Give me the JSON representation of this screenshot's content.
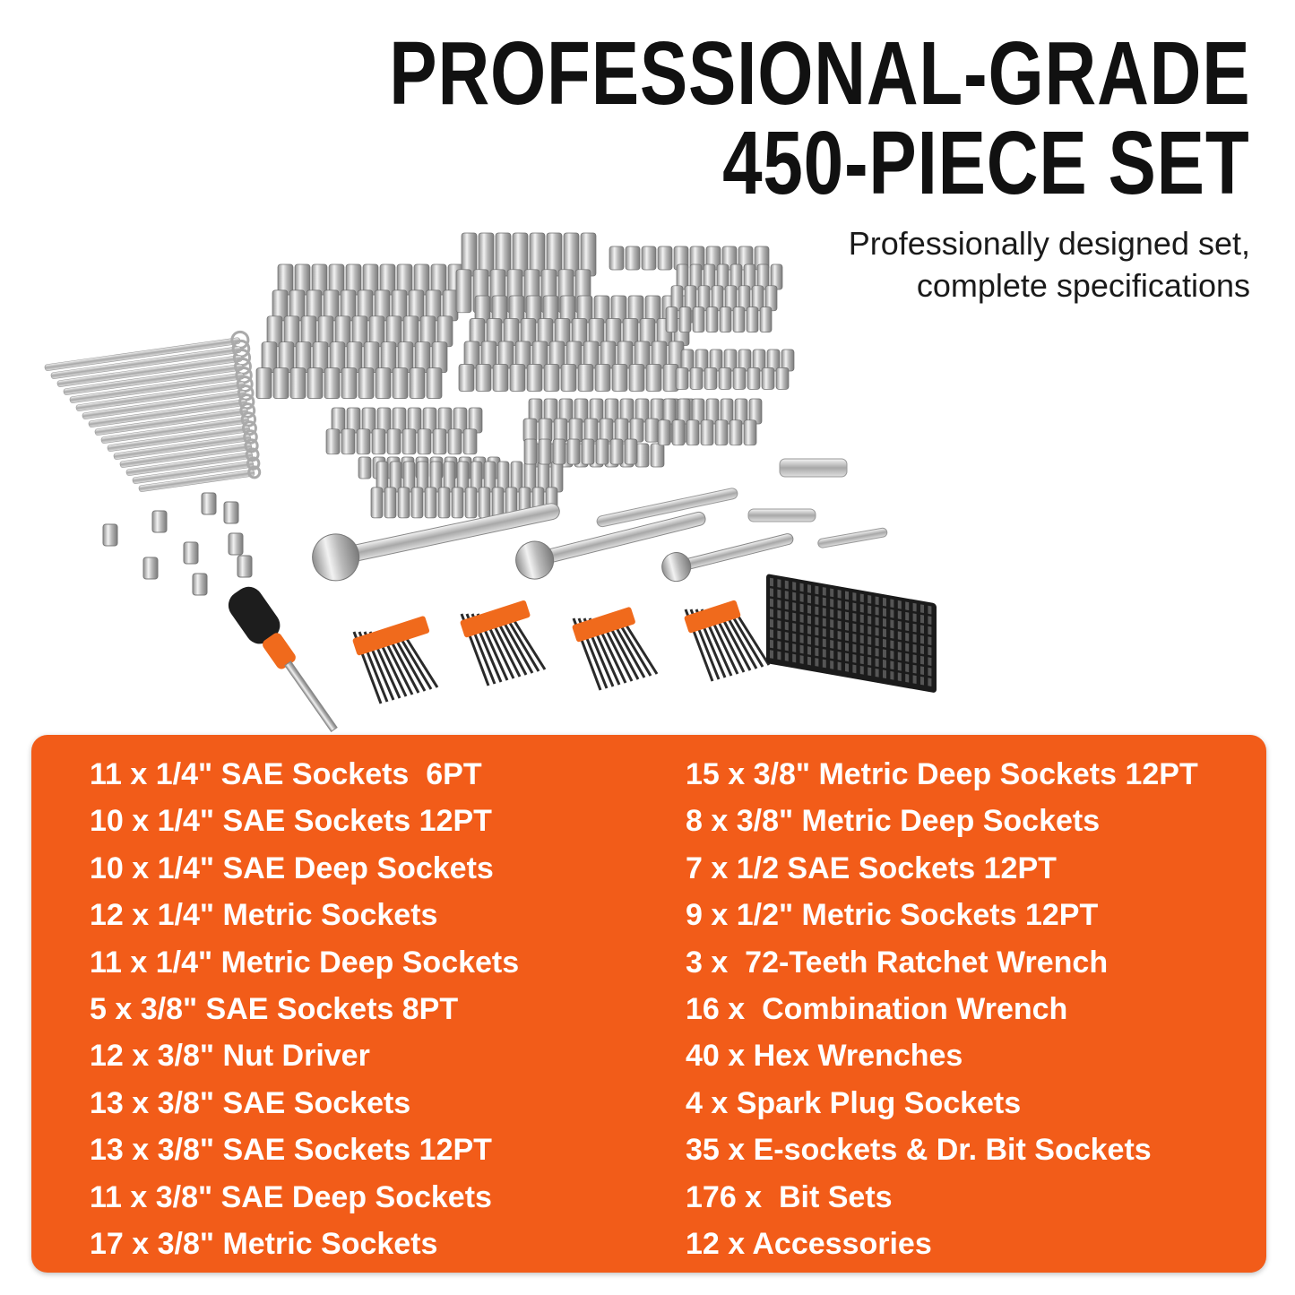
{
  "header": {
    "title_line1": "PROFESSIONAL-GRADE",
    "title_line2": "450-PIECE SET",
    "subtitle_line1": "Professionally designed set,",
    "subtitle_line2": "complete specifications"
  },
  "colors": {
    "accent": "#F25C19",
    "title": "#111111",
    "list_text": "#FFFFFF"
  },
  "contents": {
    "left": [
      "11 x 1/4\" SAE Sockets  6PT",
      "10 x 1/4\" SAE Sockets 12PT",
      "10 x 1/4\" SAE Deep Sockets",
      "12 x 1/4\" Metric Sockets",
      "11 x 1/4\" Metric Deep Sockets",
      "5 x 3/8\" SAE Sockets 8PT",
      "12 x 3/8\" Nut Driver",
      "13 x 3/8\" SAE Sockets",
      "13 x 3/8\" SAE Sockets 12PT",
      "11 x 3/8\" SAE Deep Sockets",
      "17 x 3/8\" Metric Sockets"
    ],
    "right": [
      "15 x 3/8\" Metric Deep Sockets 12PT",
      "8 x 3/8\" Metric Deep Sockets",
      "7 x 1/2 SAE Sockets 12PT",
      "9 x 1/2\" Metric Sockets 12PT",
      "3 x  72-Teeth Ratchet Wrench",
      "16 x  Combination Wrench",
      "40 x Hex Wrenches",
      "4 x Spark Plug Sockets",
      "35 x E-sockets & Dr. Bit Sockets",
      "176 x  Bit Sets",
      "12 x Accessories"
    ]
  }
}
